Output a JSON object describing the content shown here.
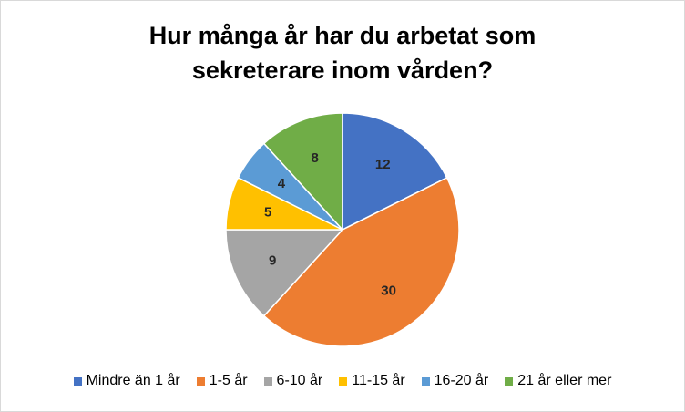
{
  "chart_data": {
    "type": "pie",
    "title": "Hur många år har du arbetat som sekreterare inom vården?",
    "title_lines": [
      "Hur många år har du arbetat som",
      "sekreterare inom vården?"
    ],
    "categories": [
      "Mindre än 1 år",
      "1-5 år",
      "6-10 år",
      "11-15 år",
      "16-20 år",
      "21 år eller mer"
    ],
    "values": [
      12,
      30,
      9,
      5,
      4,
      8
    ],
    "data_labels": [
      "12",
      "30",
      "9",
      "5",
      "4",
      "8"
    ],
    "colors": [
      "#4472C4",
      "#ED7D31",
      "#A5A5A5",
      "#FFC000",
      "#5B9BD5",
      "#70AD47"
    ],
    "start_angle": "12 o'clock",
    "direction": "clockwise",
    "legend_position": "bottom"
  }
}
